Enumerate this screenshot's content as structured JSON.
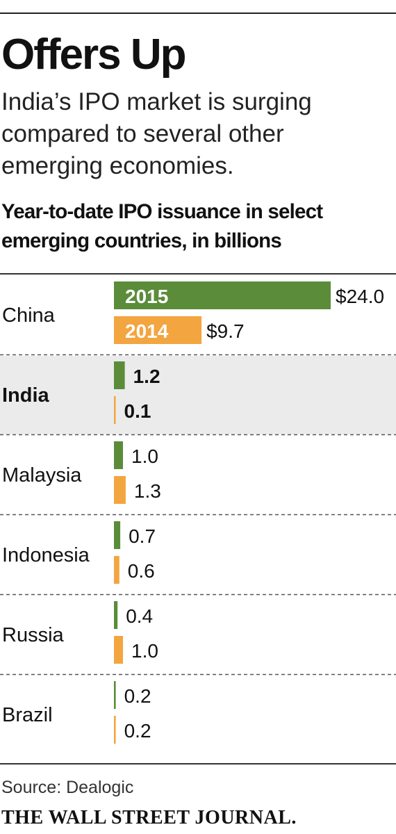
{
  "headline": "Offers Up",
  "subhead": "India’s IPO market is surging compared to several other emerging economies.",
  "source": "Source: Dealogic",
  "brand": "THE WALL STREET JOURNAL.",
  "colors": {
    "series_2015": "#5b8c3a",
    "series_2014": "#f3a540",
    "highlight_row": "#ebebeb"
  },
  "chart_data": {
    "type": "bar",
    "orientation": "horizontal",
    "title": "Year-to-date IPO issuance in select emerging countries, in billions",
    "categories": [
      "China",
      "India",
      "Malaysia",
      "Indonesia",
      "Russia",
      "Brazil"
    ],
    "highlight_category": "India",
    "series": [
      {
        "name": "2015",
        "values": [
          24.0,
          1.2,
          1.0,
          0.7,
          0.4,
          0.2
        ],
        "labels": [
          "$24.0",
          "1.2",
          "1.0",
          "0.7",
          "0.4",
          "0.2"
        ]
      },
      {
        "name": "2014",
        "values": [
          9.7,
          0.1,
          1.3,
          0.6,
          1.0,
          0.2
        ],
        "labels": [
          "$9.7",
          "0.1",
          "1.3",
          "0.6",
          "1.0",
          "0.2"
        ]
      }
    ],
    "legend": "inside-bars-top-row"
  }
}
